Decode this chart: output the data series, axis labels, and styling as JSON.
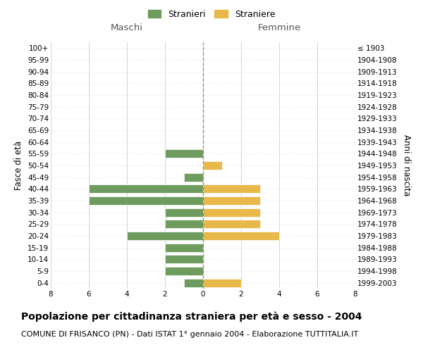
{
  "age_groups": [
    "100+",
    "95-99",
    "90-94",
    "85-89",
    "80-84",
    "75-79",
    "70-74",
    "65-69",
    "60-64",
    "55-59",
    "50-54",
    "45-49",
    "40-44",
    "35-39",
    "30-34",
    "25-29",
    "20-24",
    "15-19",
    "10-14",
    "5-9",
    "0-4"
  ],
  "birth_years": [
    "≤ 1903",
    "1904-1908",
    "1909-1913",
    "1914-1918",
    "1919-1923",
    "1924-1928",
    "1929-1933",
    "1934-1938",
    "1939-1943",
    "1944-1948",
    "1949-1953",
    "1954-1958",
    "1959-1963",
    "1964-1968",
    "1969-1973",
    "1974-1978",
    "1979-1983",
    "1984-1988",
    "1989-1993",
    "1994-1998",
    "1999-2003"
  ],
  "males": [
    0,
    0,
    0,
    0,
    0,
    0,
    0,
    0,
    0,
    2,
    0,
    1,
    6,
    6,
    2,
    2,
    4,
    2,
    2,
    2,
    1
  ],
  "females": [
    0,
    0,
    0,
    0,
    0,
    0,
    0,
    0,
    0,
    0,
    1,
    0,
    3,
    3,
    3,
    3,
    4,
    0,
    0,
    0,
    2
  ],
  "male_color": "#6e9b5e",
  "female_color": "#e8b84b",
  "bar_edge_color": "#ffffff",
  "grid_color": "#cccccc",
  "grid_y_color": "#dddddd",
  "center_line_color": "#999966",
  "bg_color": "#ffffff",
  "xlim": 8,
  "title": "Popolazione per cittadinanza straniera per età e sesso - 2004",
  "subtitle": "COMUNE DI FRISANCO (PN) - Dati ISTAT 1° gennaio 2004 - Elaborazione TUTTITALIA.IT",
  "ylabel_left": "Fasce di età",
  "ylabel_right": "Anni di nascita",
  "header_left": "Maschi",
  "header_right": "Femmine",
  "legend_male": "Stranieri",
  "legend_female": "Straniere",
  "title_fontsize": 10,
  "subtitle_fontsize": 8,
  "tick_fontsize": 7.5,
  "label_fontsize": 8.5,
  "header_fontsize": 9.5
}
